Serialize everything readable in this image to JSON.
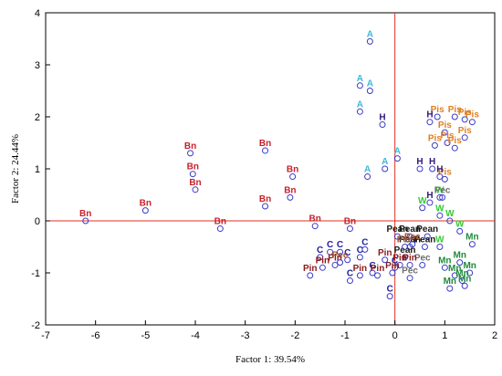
{
  "chart_data": {
    "type": "scatter",
    "title": "",
    "xlabel": "Factor 1: 39.54%",
    "ylabel": "Factor 2: 24.44%",
    "xlim": [
      -7,
      2
    ],
    "ylim": [
      -2,
      4
    ],
    "xticks": [
      "-7",
      "-6",
      "-5",
      "-4",
      "-3",
      "-2",
      "-1",
      "0",
      "1",
      "2"
    ],
    "yticks": [
      "-2",
      "-1",
      "0",
      "1",
      "2",
      "3",
      "4"
    ],
    "grid": false,
    "reference_lines": {
      "x": 0,
      "y": 0,
      "color": "#e03020"
    },
    "marker": {
      "shape": "open-circle",
      "color": "#3a3ac8"
    },
    "groups": [
      {
        "label": "Bn",
        "color": "#c8202a",
        "points": [
          [
            -6.2,
            0.0
          ],
          [
            -5.0,
            0.2
          ],
          [
            -4.1,
            1.3
          ],
          [
            -4.05,
            0.9
          ],
          [
            -4.0,
            0.6
          ],
          [
            -3.5,
            -0.15
          ],
          [
            -2.6,
            1.35
          ],
          [
            -2.6,
            0.28
          ],
          [
            -2.05,
            0.85
          ],
          [
            -2.1,
            0.45
          ],
          [
            -1.6,
            -0.1
          ],
          [
            -0.9,
            -0.15
          ]
        ]
      },
      {
        "label": "A",
        "color": "#3bb8d8",
        "points": [
          [
            -0.5,
            3.45
          ],
          [
            -0.7,
            2.6
          ],
          [
            -0.5,
            2.5
          ],
          [
            -0.7,
            2.1
          ],
          [
            -0.55,
            0.85
          ],
          [
            -0.2,
            1.0
          ],
          [
            0.05,
            1.2
          ]
        ]
      },
      {
        "label": "Pis",
        "color": "#e08020",
        "points": [
          [
            0.85,
            2.0
          ],
          [
            1.2,
            2.0
          ],
          [
            1.4,
            1.95
          ],
          [
            1.55,
            1.9
          ],
          [
            1.0,
            1.7
          ],
          [
            1.4,
            1.6
          ],
          [
            1.05,
            1.5
          ],
          [
            0.8,
            1.45
          ],
          [
            1.2,
            1.4
          ],
          [
            1.0,
            0.8
          ]
        ]
      },
      {
        "label": "H",
        "color": "#301a78",
        "points": [
          [
            -0.25,
            1.85
          ],
          [
            0.7,
            1.9
          ],
          [
            0.75,
            1.0
          ],
          [
            0.9,
            0.85
          ],
          [
            0.5,
            1.0
          ],
          [
            0.7,
            0.35
          ]
        ]
      },
      {
        "label": "W",
        "color": "#33cc33",
        "points": [
          [
            0.55,
            0.25
          ],
          [
            0.9,
            0.45
          ],
          [
            0.9,
            0.1
          ],
          [
            1.1,
            0.0
          ],
          [
            0.9,
            -0.5
          ],
          [
            1.3,
            -0.2
          ]
        ]
      },
      {
        "label": "Pec",
        "color": "#6e6e6e",
        "points": [
          [
            0.95,
            0.45
          ],
          [
            0.55,
            -0.85
          ],
          [
            0.3,
            -1.1
          ]
        ]
      },
      {
        "label": "Pean",
        "color": "#1a1a1a",
        "points": [
          [
            0.05,
            -0.3
          ],
          [
            0.3,
            -0.3
          ],
          [
            0.65,
            -0.3
          ],
          [
            0.3,
            -0.5
          ],
          [
            0.6,
            -0.5
          ],
          [
            0.2,
            -0.7
          ]
        ]
      },
      {
        "label": "Mn",
        "color": "#1f8a3a",
        "points": [
          [
            1.55,
            -0.45
          ],
          [
            1.3,
            -0.8
          ],
          [
            1.0,
            -0.9
          ],
          [
            1.5,
            -1.0
          ],
          [
            1.2,
            -1.05
          ],
          [
            1.1,
            -1.3
          ],
          [
            1.35,
            -1.15
          ],
          [
            1.4,
            -1.25
          ]
        ]
      },
      {
        "label": "C",
        "color": "#2020a0",
        "points": [
          [
            -0.6,
            -0.55
          ],
          [
            -0.7,
            -0.7
          ],
          [
            -0.95,
            -0.75
          ],
          [
            -1.1,
            -0.6
          ],
          [
            -1.5,
            -0.7
          ],
          [
            -1.3,
            -0.6
          ],
          [
            -0.9,
            -1.15
          ],
          [
            -0.45,
            -1.0
          ],
          [
            -0.1,
            -1.45
          ],
          [
            0.0,
            -0.9
          ]
        ]
      },
      {
        "label": "Pin",
        "color": "#8b1a1a",
        "points": [
          [
            -1.7,
            -1.05
          ],
          [
            -1.2,
            -0.85
          ],
          [
            -1.45,
            -0.9
          ],
          [
            -0.7,
            -1.05
          ],
          [
            -0.35,
            -1.05
          ],
          [
            -0.05,
            -1.0
          ],
          [
            0.1,
            -0.85
          ],
          [
            0.3,
            -0.85
          ],
          [
            -0.2,
            -0.75
          ]
        ]
      },
      {
        "label": "Pec",
        "color": "#a0522d",
        "points": [
          [
            -1.1,
            -0.8
          ],
          [
            0.2,
            -0.5
          ],
          [
            0.35,
            -0.45
          ]
        ]
      }
    ]
  }
}
